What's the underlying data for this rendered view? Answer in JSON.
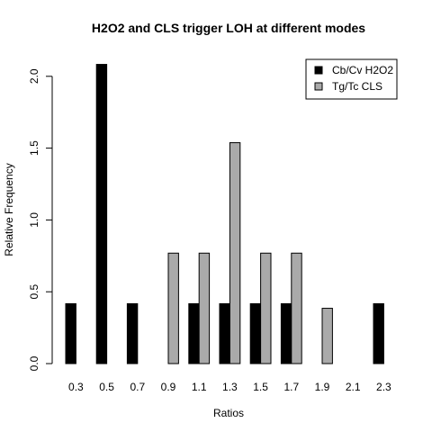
{
  "chart_data": {
    "type": "bar",
    "title": "H2O2 and CLS trigger LOH at different modes",
    "xlabel": "Ratios",
    "ylabel": "Relative Frequency",
    "categories": [
      "0.3",
      "0.5",
      "0.7",
      "0.9",
      "1.1",
      "1.3",
      "1.5",
      "1.7",
      "1.9",
      "2.1",
      "2.3"
    ],
    "ylim": [
      0,
      2.08
    ],
    "yticks": [
      "0.0",
      "0.5",
      "1.0",
      "1.5",
      "2.0"
    ],
    "legend_position": "top-right",
    "grid": false,
    "series": [
      {
        "name": "Cb/Cv H2O2",
        "color": "#000000",
        "values": [
          0.417,
          2.083,
          0.417,
          0,
          0.417,
          0.417,
          0.417,
          0.417,
          0,
          0,
          0.417
        ]
      },
      {
        "name": "Tg/Tc CLS",
        "color": "#aaaaaa",
        "values": [
          0,
          0,
          0,
          0.769,
          0.769,
          1.538,
          0.769,
          0.769,
          0.385,
          0,
          0
        ]
      }
    ]
  }
}
